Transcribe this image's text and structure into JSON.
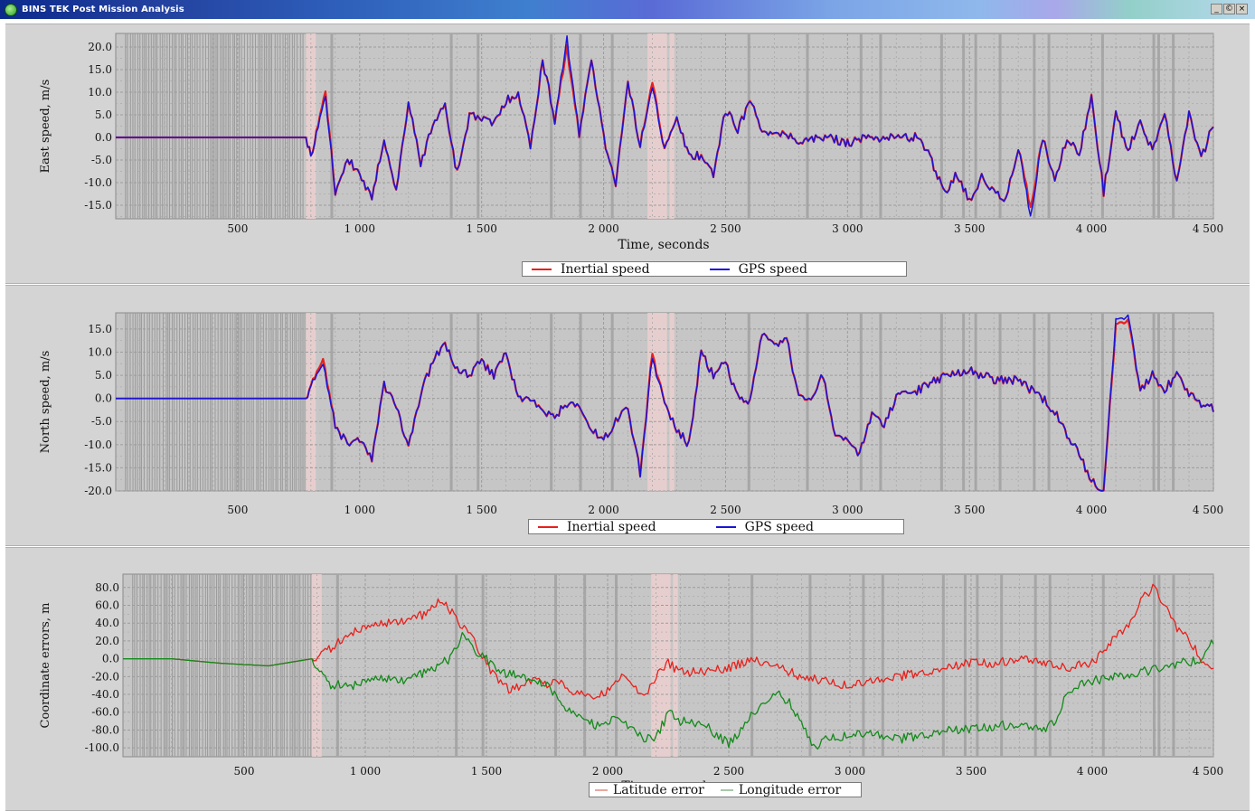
{
  "window": {
    "title": "BINS TEK Post Mission Analysis",
    "icon": "app-icon",
    "controls": [
      "_",
      "©",
      "×"
    ]
  },
  "colors": {
    "inertial": "#e8201c",
    "gps": "#1a14d6",
    "latitude": "#e8201c",
    "longitude": "#138a1a",
    "plot_bg": "#c6c6c6",
    "panel_bg": "#d4d4d4"
  },
  "charts": [
    {
      "ylabel": "East speed, m/s",
      "xlabel": "Time, seconds",
      "legend": [
        "Inertial speed",
        "GPS speed"
      ]
    },
    {
      "ylabel": "North speed, m/s",
      "xlabel": "Time, seconds",
      "legend": [
        "Inertial speed",
        "GPS speed"
      ]
    },
    {
      "ylabel": "Coordinate errors, m",
      "xlabel": "Time, seconds",
      "legend": [
        "Latitude error",
        "Longitude error"
      ]
    }
  ],
  "chart_data": [
    {
      "type": "line",
      "xlabel": "Time, seconds",
      "ylabel": "East speed, m/s",
      "xlim": [
        0,
        4500
      ],
      "ylim": [
        -18,
        23
      ],
      "x_ticks": [
        "500",
        "1 000",
        "1 500",
        "2 000",
        "2 500",
        "3 000",
        "3 500",
        "4 000",
        "4 500"
      ],
      "y_ticks": [
        "20.0",
        "15.0",
        "10.0",
        "5.0",
        "0.0",
        "-5.0",
        "-10.0",
        "-15.0"
      ],
      "grid": true,
      "legend_position": "bottom",
      "series": [
        {
          "name": "Inertial speed",
          "color": "#e8201c",
          "x": [
            0,
            780,
            800,
            860,
            900,
            950,
            1000,
            1050,
            1100,
            1150,
            1200,
            1250,
            1300,
            1350,
            1400,
            1450,
            1500,
            1550,
            1600,
            1650,
            1700,
            1750,
            1800,
            1850,
            1900,
            1950,
            2000,
            2050,
            2100,
            2150,
            2200,
            2250,
            2300,
            2350,
            2400,
            2450,
            2500,
            2550,
            2600,
            2650,
            2700,
            2750,
            2800,
            2900,
            3000,
            3100,
            3200,
            3300,
            3400,
            3450,
            3500,
            3550,
            3600,
            3650,
            3700,
            3750,
            3800,
            3850,
            3900,
            3950,
            4000,
            4050,
            4100,
            4150,
            4200,
            4250,
            4300,
            4350,
            4400,
            4450,
            4500
          ],
          "y": [
            0,
            0,
            -4,
            10,
            -12,
            -5,
            -8,
            -14,
            0,
            -12,
            8,
            -6,
            3,
            7,
            -8,
            5,
            4,
            3,
            8,
            10,
            -2,
            17,
            4,
            20,
            0,
            18,
            0,
            -10,
            12,
            -2,
            13,
            -3,
            4,
            -4,
            -4,
            -8,
            6,
            2,
            8,
            2,
            0,
            1,
            -1,
            0,
            -1,
            0,
            0,
            0,
            -12,
            -8,
            -14,
            -9,
            -12,
            -14,
            -2,
            -16,
            0,
            -10,
            0,
            -4,
            9,
            -12,
            5,
            -3,
            4,
            -3,
            6,
            -10,
            6,
            -5,
            3
          ]
        },
        {
          "name": "GPS speed",
          "color": "#1a14d6",
          "x": [
            0,
            780,
            800,
            860,
            900,
            950,
            1000,
            1050,
            1100,
            1150,
            1200,
            1250,
            1300,
            1350,
            1400,
            1450,
            1500,
            1550,
            1600,
            1650,
            1700,
            1750,
            1800,
            1850,
            1900,
            1950,
            2000,
            2050,
            2100,
            2150,
            2200,
            2250,
            2300,
            2350,
            2400,
            2450,
            2500,
            2550,
            2600,
            2650,
            2700,
            2750,
            2800,
            2900,
            3000,
            3100,
            3200,
            3300,
            3400,
            3450,
            3500,
            3550,
            3600,
            3650,
            3700,
            3750,
            3800,
            3850,
            3900,
            3950,
            4000,
            4050,
            4100,
            4150,
            4200,
            4250,
            4300,
            4350,
            4400,
            4450,
            4500
          ],
          "y": [
            0,
            0,
            -4,
            9,
            -12,
            -5,
            -8,
            -14,
            0,
            -12,
            8,
            -6,
            3,
            7,
            -8,
            5,
            4,
            3,
            8,
            10,
            -2,
            17,
            4,
            22,
            0,
            18,
            0,
            -10,
            12,
            -2,
            12,
            -3,
            4,
            -4,
            -4,
            -8,
            6,
            2,
            8,
            2,
            0,
            1,
            -1,
            0,
            -1,
            0,
            0,
            0,
            -12,
            -8,
            -14,
            -9,
            -12,
            -14,
            -2,
            -18,
            0,
            -10,
            0,
            -4,
            9,
            -12,
            5,
            -3,
            4,
            -3,
            6,
            -10,
            6,
            -5,
            3
          ]
        }
      ]
    },
    {
      "type": "line",
      "xlabel": "Time, seconds",
      "ylabel": "North speed, m/s",
      "xlim": [
        0,
        4500
      ],
      "ylim": [
        -20,
        18.5
      ],
      "x_ticks": [
        "500",
        "1 000",
        "1 500",
        "2 000",
        "2 500",
        "3 000",
        "3 500",
        "4 000",
        "4 500"
      ],
      "y_ticks": [
        "15.0",
        "10.0",
        "5.0",
        "0.0",
        "-5.0",
        "-10.0",
        "-15.0",
        "-20.0"
      ],
      "grid": true,
      "legend_position": "bottom",
      "series": [
        {
          "name": "Inertial speed",
          "color": "#e8201c",
          "x": [
            0,
            780,
            800,
            850,
            900,
            950,
            1000,
            1050,
            1100,
            1150,
            1200,
            1250,
            1300,
            1350,
            1400,
            1450,
            1500,
            1550,
            1600,
            1650,
            1700,
            1750,
            1800,
            1850,
            1900,
            1950,
            2000,
            2050,
            2100,
            2150,
            2200,
            2250,
            2300,
            2350,
            2400,
            2450,
            2500,
            2550,
            2600,
            2650,
            2700,
            2750,
            2800,
            2850,
            2900,
            2950,
            3000,
            3050,
            3100,
            3150,
            3200,
            3300,
            3400,
            3500,
            3600,
            3700,
            3800,
            3850,
            3900,
            3950,
            4000,
            4050,
            4100,
            4150,
            4200,
            4250,
            4300,
            4350,
            4400,
            4450,
            4500
          ],
          "y": [
            0,
            0,
            3,
            8,
            -6,
            -10,
            -9,
            -13,
            3,
            -2,
            -11,
            1,
            8,
            12,
            6,
            5,
            8,
            5,
            10,
            0,
            0,
            -3,
            -4,
            -1,
            -2,
            -7,
            -9,
            -5,
            -2,
            -16,
            10,
            -1,
            -7,
            -10,
            10,
            5,
            8,
            0,
            -1,
            14,
            11,
            13,
            0,
            0,
            5,
            -9,
            -9,
            -12,
            -3,
            -6,
            0,
            2,
            5,
            6,
            4,
            4,
            0,
            -3,
            -8,
            -12,
            -18,
            -20,
            16,
            17,
            2,
            5,
            2,
            5,
            1,
            -1,
            -2
          ]
        },
        {
          "name": "GPS speed",
          "color": "#1a14d6",
          "x": [
            0,
            780,
            800,
            850,
            900,
            950,
            1000,
            1050,
            1100,
            1150,
            1200,
            1250,
            1300,
            1350,
            1400,
            1450,
            1500,
            1550,
            1600,
            1650,
            1700,
            1750,
            1800,
            1850,
            1900,
            1950,
            2000,
            2050,
            2100,
            2150,
            2200,
            2250,
            2300,
            2350,
            2400,
            2450,
            2500,
            2550,
            2600,
            2650,
            2700,
            2750,
            2800,
            2850,
            2900,
            2950,
            3000,
            3050,
            3100,
            3150,
            3200,
            3300,
            3400,
            3500,
            3600,
            3700,
            3800,
            3850,
            3900,
            3950,
            4000,
            4050,
            4100,
            4150,
            4200,
            4250,
            4300,
            4350,
            4400,
            4450,
            4500
          ],
          "y": [
            0,
            0,
            3,
            7,
            -6,
            -10,
            -9,
            -13,
            3,
            -2,
            -11,
            1,
            8,
            12,
            6,
            5,
            8,
            5,
            10,
            0,
            0,
            -3,
            -4,
            -1,
            -2,
            -7,
            -9,
            -5,
            -2,
            -16,
            9,
            -1,
            -7,
            -10,
            10,
            5,
            8,
            0,
            -1,
            14,
            11,
            13,
            0,
            0,
            5,
            -9,
            -9,
            -12,
            -3,
            -6,
            0,
            2,
            5,
            6,
            4,
            4,
            0,
            -3,
            -8,
            -12,
            -18,
            -20,
            17,
            18,
            2,
            5,
            2,
            5,
            1,
            -1,
            -2
          ]
        }
      ]
    },
    {
      "type": "line",
      "xlabel": "Time, seconds",
      "ylabel": "Coordinate errors, m",
      "xlim": [
        0,
        4500
      ],
      "ylim": [
        -110,
        95
      ],
      "x_ticks": [
        "500",
        "1 000",
        "1 500",
        "2 000",
        "2 500",
        "3 000",
        "3 500",
        "4 000",
        "4 500"
      ],
      "y_ticks": [
        "80.0",
        "60.0",
        "40.0",
        "20.0",
        "0.0",
        "-20.0",
        "-40.0",
        "-60.0",
        "-80.0",
        "-100.0"
      ],
      "grid": true,
      "legend_position": "bottom",
      "series": [
        {
          "name": "Latitude error",
          "color": "#e8201c",
          "x": [
            0,
            200,
            400,
            600,
            780,
            850,
            950,
            1050,
            1150,
            1250,
            1300,
            1350,
            1400,
            1450,
            1500,
            1550,
            1600,
            1650,
            1700,
            1750,
            1800,
            1850,
            1900,
            1950,
            2000,
            2050,
            2100,
            2150,
            2200,
            2250,
            2300,
            2400,
            2500,
            2600,
            2700,
            2800,
            2900,
            3000,
            3100,
            3200,
            3300,
            3400,
            3500,
            3600,
            3700,
            3800,
            3900,
            4000,
            4050,
            4100,
            4150,
            4200,
            4250,
            4300,
            4350,
            4400,
            4450,
            4500
          ],
          "y": [
            0,
            0,
            -5,
            -8,
            0,
            10,
            30,
            40,
            42,
            50,
            65,
            55,
            35,
            20,
            -5,
            -25,
            -35,
            -30,
            -20,
            -30,
            -25,
            -35,
            -40,
            -45,
            -35,
            -20,
            -30,
            -45,
            -20,
            -5,
            -15,
            -15,
            -10,
            0,
            -10,
            -20,
            -25,
            -30,
            -25,
            -20,
            -15,
            -10,
            -5,
            -5,
            0,
            -5,
            -10,
            -5,
            10,
            25,
            40,
            65,
            80,
            60,
            35,
            20,
            0,
            -15
          ]
        },
        {
          "name": "Longitude error",
          "color": "#138a1a",
          "x": [
            0,
            200,
            400,
            600,
            780,
            850,
            950,
            1050,
            1150,
            1250,
            1350,
            1400,
            1450,
            1500,
            1550,
            1650,
            1750,
            1850,
            1950,
            2000,
            2050,
            2100,
            2150,
            2200,
            2250,
            2300,
            2400,
            2450,
            2500,
            2550,
            2600,
            2650,
            2700,
            2750,
            2800,
            2850,
            2900,
            3000,
            3100,
            3200,
            3300,
            3400,
            3500,
            3600,
            3700,
            3800,
            3850,
            3900,
            3950,
            4000,
            4100,
            4200,
            4300,
            4350,
            4400,
            4450,
            4500
          ],
          "y": [
            0,
            0,
            -5,
            -8,
            0,
            -30,
            -30,
            -20,
            -25,
            -15,
            0,
            25,
            10,
            0,
            -15,
            -20,
            -30,
            -60,
            -75,
            -70,
            -70,
            -80,
            -90,
            -90,
            -60,
            -70,
            -75,
            -85,
            -95,
            -80,
            -60,
            -50,
            -40,
            -50,
            -70,
            -100,
            -90,
            -85,
            -85,
            -90,
            -85,
            -80,
            -80,
            -75,
            -75,
            -80,
            -70,
            -35,
            -30,
            -25,
            -20,
            -15,
            -10,
            -5,
            -5,
            0,
            20
          ]
        }
      ]
    }
  ]
}
